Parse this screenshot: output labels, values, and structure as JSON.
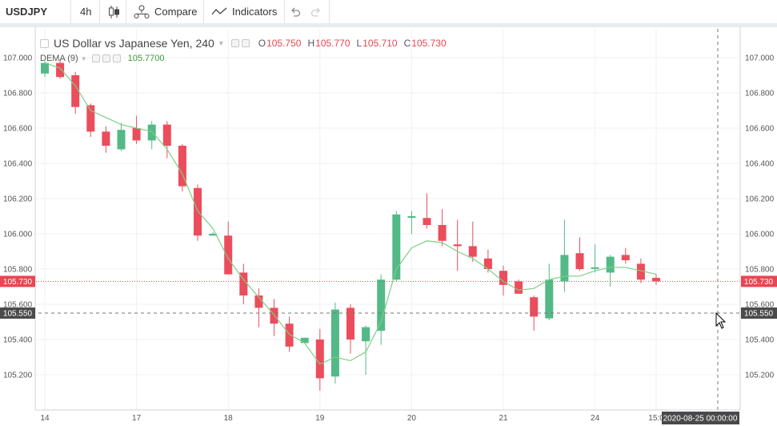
{
  "toolbar": {
    "symbol": "USDJPY",
    "interval": "4h",
    "compare_label": "Compare",
    "indicators_label": "Indicators"
  },
  "legend": {
    "title": "US Dollar vs Japanese Yen, 240",
    "o_key": "O",
    "o_val": "105.750",
    "h_key": "H",
    "h_val": "105.770",
    "l_key": "L",
    "l_val": "105.710",
    "c_key": "C",
    "c_val": "105.730",
    "dema_label": "DEMA (9)",
    "dema_value": "105.7700"
  },
  "colors": {
    "up": "#53b987",
    "down": "#eb4d5c",
    "dema": "#7ecf86",
    "price_line": "#e84652",
    "crosshair_label": "#4a4a4a"
  },
  "chart_data": {
    "type": "candlestick",
    "title": "US Dollar vs Japanese Yen, 240",
    "ylim": [
      105.05,
      107.05
    ],
    "y_ticks": [
      "107.000",
      "106.800",
      "106.600",
      "106.400",
      "106.200",
      "106.000",
      "105.800",
      "105.600",
      "105.400",
      "105.200"
    ],
    "x_ticks": [
      "14",
      "17",
      "18",
      "19",
      "20",
      "21",
      "24",
      "15:0"
    ],
    "price_label": "105.730",
    "crosshair_price_label": "105.550",
    "crosshair_time_label": "2020-08-25 00:00:00",
    "candles": [
      {
        "o": 106.91,
        "h": 106.98,
        "l": 106.89,
        "c": 106.97
      },
      {
        "o": 106.97,
        "h": 106.99,
        "l": 106.88,
        "c": 106.89
      },
      {
        "o": 106.9,
        "h": 106.92,
        "l": 106.68,
        "c": 106.72
      },
      {
        "o": 106.73,
        "h": 106.74,
        "l": 106.55,
        "c": 106.58
      },
      {
        "o": 106.58,
        "h": 106.61,
        "l": 106.46,
        "c": 106.5
      },
      {
        "o": 106.48,
        "h": 106.63,
        "l": 106.47,
        "c": 106.59
      },
      {
        "o": 106.6,
        "h": 106.67,
        "l": 106.51,
        "c": 106.53
      },
      {
        "o": 106.53,
        "h": 106.64,
        "l": 106.48,
        "c": 106.62
      },
      {
        "o": 106.62,
        "h": 106.64,
        "l": 106.43,
        "c": 106.5
      },
      {
        "o": 106.5,
        "h": 106.51,
        "l": 106.24,
        "c": 106.27
      },
      {
        "o": 106.26,
        "h": 106.28,
        "l": 105.96,
        "c": 105.99
      },
      {
        "o": 105.99,
        "h": 106.01,
        "l": 105.99,
        "c": 106.0
      },
      {
        "o": 105.99,
        "h": 106.07,
        "l": 105.77,
        "c": 105.77
      },
      {
        "o": 105.78,
        "h": 105.83,
        "l": 105.6,
        "c": 105.65
      },
      {
        "o": 105.65,
        "h": 105.69,
        "l": 105.47,
        "c": 105.58
      },
      {
        "o": 105.58,
        "h": 105.63,
        "l": 105.42,
        "c": 105.49
      },
      {
        "o": 105.49,
        "h": 105.53,
        "l": 105.33,
        "c": 105.36
      },
      {
        "o": 105.38,
        "h": 105.41,
        "l": 105.38,
        "c": 105.41
      },
      {
        "o": 105.4,
        "h": 105.46,
        "l": 105.11,
        "c": 105.18
      },
      {
        "o": 105.19,
        "h": 105.61,
        "l": 105.15,
        "c": 105.57
      },
      {
        "o": 105.58,
        "h": 105.6,
        "l": 105.32,
        "c": 105.4
      },
      {
        "o": 105.39,
        "h": 105.48,
        "l": 105.2,
        "c": 105.47
      },
      {
        "o": 105.45,
        "h": 105.77,
        "l": 105.37,
        "c": 105.74
      },
      {
        "o": 105.74,
        "h": 106.13,
        "l": 105.73,
        "c": 106.11
      },
      {
        "o": 106.1,
        "h": 106.13,
        "l": 106.0,
        "c": 106.1
      },
      {
        "o": 106.09,
        "h": 106.23,
        "l": 106.03,
        "c": 106.05
      },
      {
        "o": 106.05,
        "h": 106.14,
        "l": 105.93,
        "c": 105.96
      },
      {
        "o": 105.94,
        "h": 106.08,
        "l": 105.79,
        "c": 105.93
      },
      {
        "o": 105.93,
        "h": 106.07,
        "l": 105.84,
        "c": 105.87
      },
      {
        "o": 105.86,
        "h": 105.91,
        "l": 105.78,
        "c": 105.8
      },
      {
        "o": 105.79,
        "h": 105.82,
        "l": 105.65,
        "c": 105.71
      },
      {
        "o": 105.73,
        "h": 105.74,
        "l": 105.66,
        "c": 105.66
      },
      {
        "o": 105.64,
        "h": 105.65,
        "l": 105.45,
        "c": 105.53
      },
      {
        "o": 105.52,
        "h": 105.83,
        "l": 105.51,
        "c": 105.74
      },
      {
        "o": 105.73,
        "h": 106.08,
        "l": 105.67,
        "c": 105.88
      },
      {
        "o": 105.89,
        "h": 105.98,
        "l": 105.79,
        "c": 105.8
      },
      {
        "o": 105.81,
        "h": 105.94,
        "l": 105.78,
        "c": 105.81
      },
      {
        "o": 105.78,
        "h": 105.88,
        "l": 105.7,
        "c": 105.87
      },
      {
        "o": 105.88,
        "h": 105.92,
        "l": 105.83,
        "c": 105.85
      },
      {
        "o": 105.83,
        "h": 105.86,
        "l": 105.72,
        "c": 105.74
      },
      {
        "o": 105.75,
        "h": 105.77,
        "l": 105.71,
        "c": 105.73
      }
    ],
    "dema": [
      106.97,
      106.94,
      106.84,
      106.7,
      106.66,
      106.62,
      106.6,
      106.58,
      106.48,
      106.34,
      106.13,
      106.03,
      105.86,
      105.74,
      105.64,
      105.54,
      105.43,
      105.38,
      105.26,
      105.3,
      105.28,
      105.33,
      105.5,
      105.8,
      105.92,
      105.96,
      105.95,
      105.9,
      105.86,
      105.8,
      105.73,
      105.68,
      105.69,
      105.74,
      105.76,
      105.76,
      105.79,
      105.81,
      105.81,
      105.79,
      105.77
    ]
  }
}
